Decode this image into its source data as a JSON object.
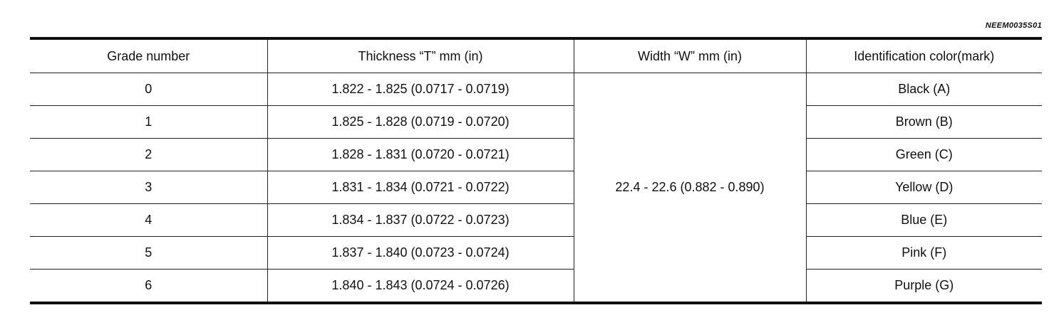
{
  "code": "NEEM0035S01",
  "table": {
    "header": [
      "Grade number",
      "Thickness “T” mm (in)",
      "Width “W” mm (in)",
      "Identification color(mark)"
    ],
    "width": "22.4 - 22.6 (0.882 - 0.890)",
    "rows": [
      [
        "0",
        "1.822 - 1.825 (0.0717 - 0.0719)",
        "Black (A)"
      ],
      [
        "1",
        "1.825 - 1.828 (0.0719 - 0.0720)",
        "Brown (B)"
      ],
      [
        "2",
        "1.828 - 1.831 (0.0720 - 0.0721)",
        "Green (C)"
      ],
      [
        "3",
        "1.831 - 1.834 (0.0721 - 0.0722)",
        "Yellow (D)"
      ],
      [
        "4",
        "1.834 - 1.837 (0.0722 - 0.0723)",
        "Blue (E)"
      ],
      [
        "5",
        "1.837 - 1.840 (0.0723 - 0.0724)",
        "Pink (F)"
      ],
      [
        "6",
        "1.840 - 1.843 (0.0724 - 0.0726)",
        "Purple (G)"
      ]
    ]
  }
}
